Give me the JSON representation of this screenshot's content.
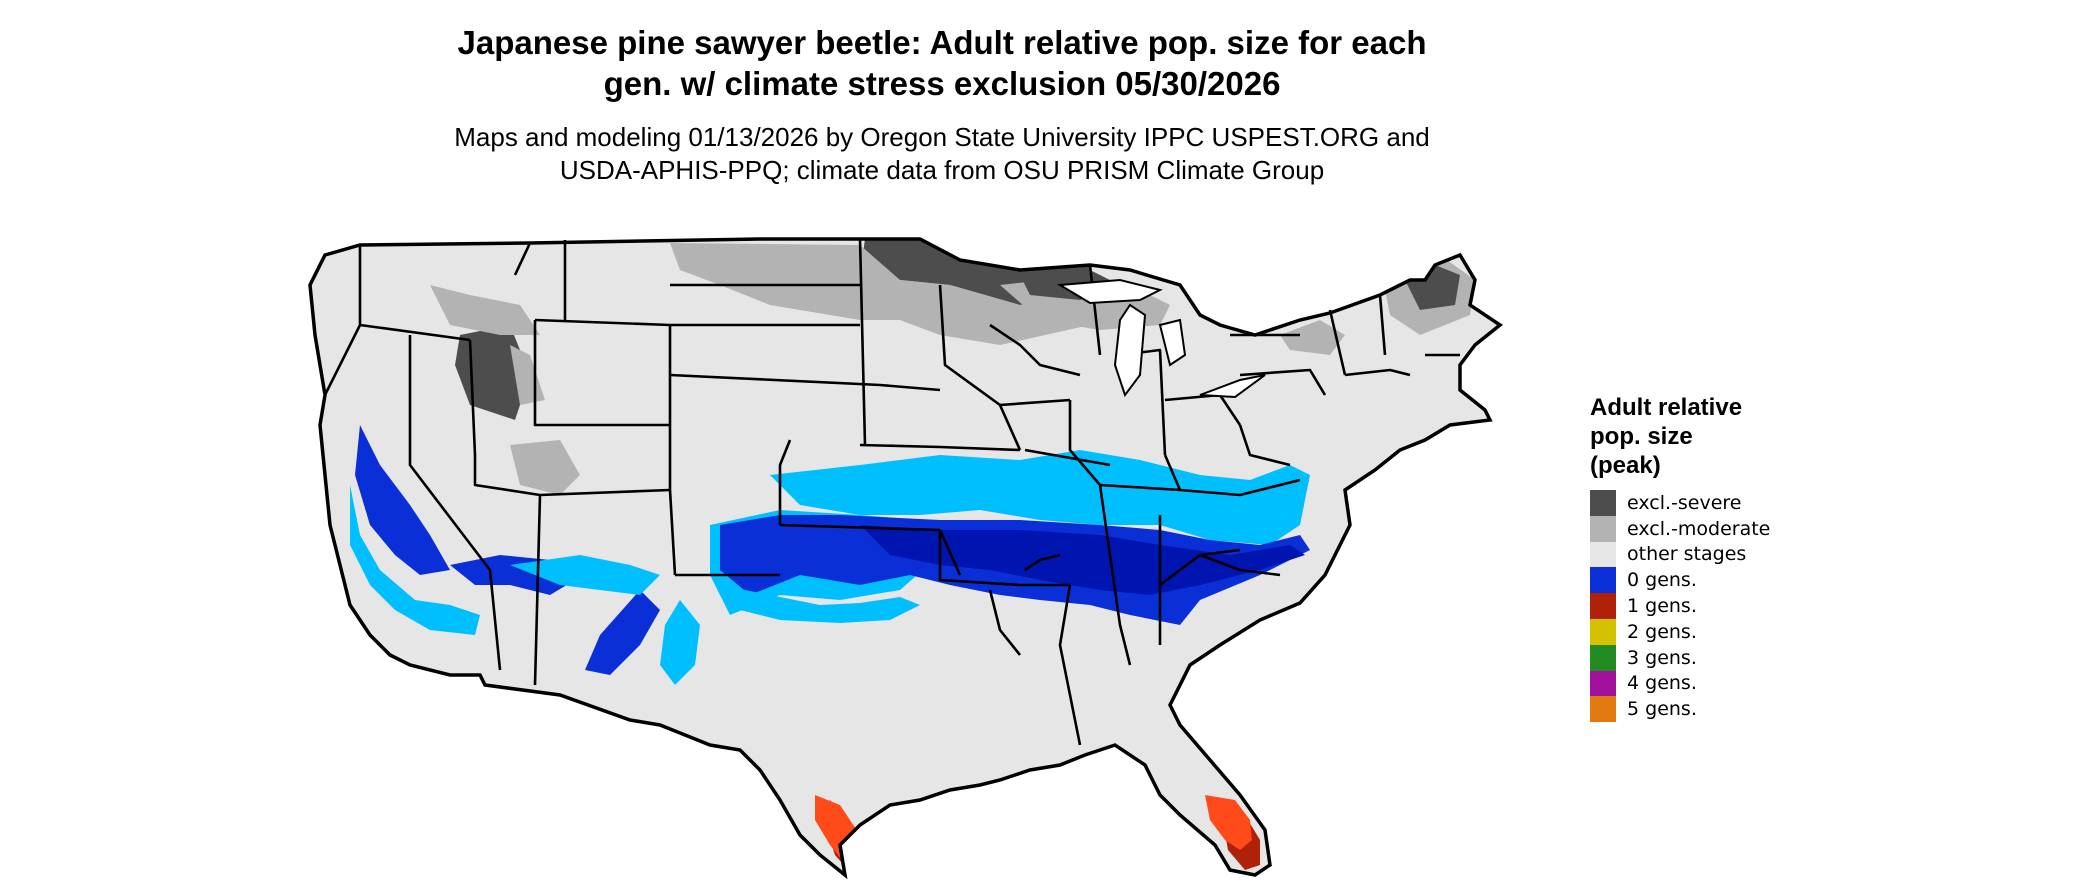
{
  "title": {
    "line1": "Japanese pine sawyer beetle: Adult relative pop. size for each",
    "line2": "gen. w/ climate stress exclusion 05/30/2026"
  },
  "subtitle": {
    "line1": "Maps and modeling 01/13/2026 by Oregon State University IPPC USPEST.ORG and",
    "line2": "USDA-APHIS-PPQ; climate data from OSU PRISM Climate Group"
  },
  "legend": {
    "title_lines": [
      "Adult relative",
      "pop. size",
      "(peak)"
    ],
    "items": [
      {
        "label": "excl.-severe",
        "color": "#4d4d4d"
      },
      {
        "label": "excl.-moderate",
        "color": "#b3b3b3"
      },
      {
        "label": "other stages",
        "color": "#e6e6e6"
      },
      {
        "label": "0 gens.",
        "color": "#0a2fd6"
      },
      {
        "label": "1 gens.",
        "color": "#b0210a"
      },
      {
        "label": "2 gens.",
        "color": "#d4c200"
      },
      {
        "label": "3 gens.",
        "color": "#228b22"
      },
      {
        "label": "4 gens.",
        "color": "#a0109a"
      },
      {
        "label": "5 gens.",
        "color": "#e07a10"
      }
    ]
  },
  "map_colors": {
    "land": "#e6e6e6",
    "light_blue": "#00bfff",
    "mid_blue": "#0a2fd6",
    "dark_blue": "#0015b0",
    "orange_red": "#ff4a1a",
    "dark_red": "#b0210a",
    "moderate_gray": "#b3b3b3",
    "severe_gray": "#4d4d4d",
    "border": "#000000"
  }
}
